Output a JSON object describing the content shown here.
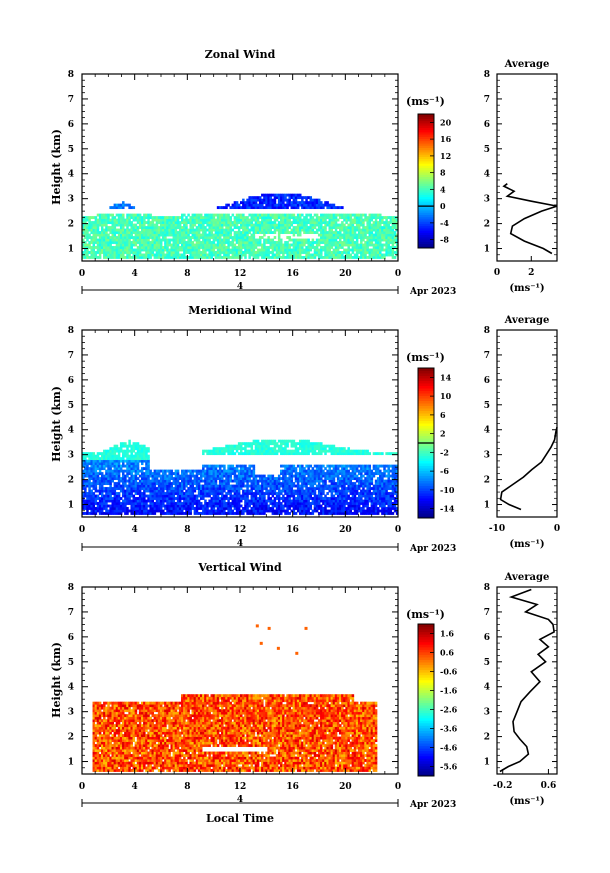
{
  "chart_data": [
    {
      "type": "heatmap",
      "title": "Zonal Wind",
      "ylabel": "Height (km)",
      "ylim": [
        0.5,
        8
      ],
      "yticks": [
        1,
        2,
        3,
        4,
        5,
        6,
        7,
        8
      ],
      "xlim": [
        0,
        24
      ],
      "xticks": [
        "0",
        "4",
        "8",
        "12",
        "16",
        "20",
        "0"
      ],
      "date_label": "4",
      "month_label": "Apr 2023",
      "colorbar": {
        "unit": "(ms⁻¹)",
        "ticks": [
          "-8",
          "-4",
          "0",
          "4",
          "8",
          "12",
          "16",
          "20"
        ],
        "range": [
          -10,
          22
        ],
        "zero_line": 0
      },
      "profile": {
        "title": "Average",
        "xticks": [
          "0",
          "2"
        ],
        "xlim": [
          0,
          3.5
        ],
        "xlabel": "(ms⁻¹)",
        "heights": [
          0.8,
          1.0,
          1.3,
          1.6,
          1.9,
          2.2,
          2.5,
          2.7,
          2.9,
          3.1,
          3.3,
          3.5,
          3.6
        ],
        "values": [
          3.2,
          2.7,
          1.6,
          0.8,
          0.9,
          1.6,
          2.6,
          3.5,
          2.0,
          0.6,
          1.0,
          0.4,
          0.6
        ]
      }
    },
    {
      "type": "heatmap",
      "title": "Meridional Wind",
      "ylabel": "Height (km)",
      "ylim": [
        0.5,
        8
      ],
      "yticks": [
        1,
        2,
        3,
        4,
        5,
        6,
        7,
        8
      ],
      "xlim": [
        0,
        24
      ],
      "xticks": [
        "0",
        "4",
        "8",
        "12",
        "16",
        "20",
        "0"
      ],
      "date_label": "4",
      "month_label": "Apr 2023",
      "colorbar": {
        "unit": "(ms⁻¹)",
        "ticks": [
          "-14",
          "-10",
          "-6",
          "-2",
          "2",
          "6",
          "10",
          "14"
        ],
        "range": [
          -16,
          16
        ],
        "zero_line": 0
      },
      "profile": {
        "title": "Average",
        "xticks": [
          "-10",
          "0"
        ],
        "xlim": [
          -10,
          0
        ],
        "xlabel": "(ms⁻¹)",
        "heights": [
          0.8,
          1.0,
          1.2,
          1.5,
          1.8,
          2.1,
          2.4,
          2.7,
          3.0,
          3.3,
          3.6,
          3.9,
          4.1
        ],
        "values": [
          -6,
          -8,
          -9.4,
          -9.2,
          -7.4,
          -5.6,
          -4.2,
          -2.6,
          -1.8,
          -1.0,
          -0.4,
          -0.2,
          0
        ]
      }
    },
    {
      "type": "heatmap",
      "title": "Vertical Wind",
      "ylabel": "Height (km)",
      "xlabel": "Local Time",
      "ylim": [
        0.5,
        8
      ],
      "yticks": [
        1,
        2,
        3,
        4,
        5,
        6,
        7,
        8
      ],
      "xlim": [
        0,
        24
      ],
      "xticks": [
        "0",
        "4",
        "8",
        "12",
        "16",
        "20",
        "0"
      ],
      "date_label": "4",
      "month_label": "Apr 2023",
      "colorbar": {
        "unit": "(ms⁻¹)",
        "ticks": [
          "-5.6",
          "-4.6",
          "-3.6",
          "-2.6",
          "-1.6",
          "-0.6",
          "0.6",
          "1.6"
        ],
        "range": [
          -6.1,
          2.1
        ],
        "zero_line": null
      },
      "profile": {
        "title": "Average",
        "xticks": [
          "-0.2",
          "0.6"
        ],
        "xlim": [
          -0.3,
          0.75
        ],
        "xlabel": "(ms⁻¹)",
        "heights": [
          0.6,
          0.8,
          1.0,
          1.3,
          1.6,
          1.9,
          2.2,
          2.6,
          3.0,
          3.4,
          3.8,
          4.2,
          4.6,
          5.0,
          5.3,
          5.6,
          5.9,
          6.2,
          6.5,
          6.7,
          7.0,
          7.3,
          7.6,
          7.9
        ],
        "values": [
          -0.25,
          -0.1,
          0.1,
          0.25,
          0.22,
          0.1,
          0.0,
          -0.02,
          0.05,
          0.12,
          0.28,
          0.45,
          0.3,
          0.55,
          0.42,
          0.6,
          0.45,
          0.7,
          0.68,
          0.6,
          0.2,
          0.4,
          -0.05,
          0.3
        ]
      }
    }
  ]
}
